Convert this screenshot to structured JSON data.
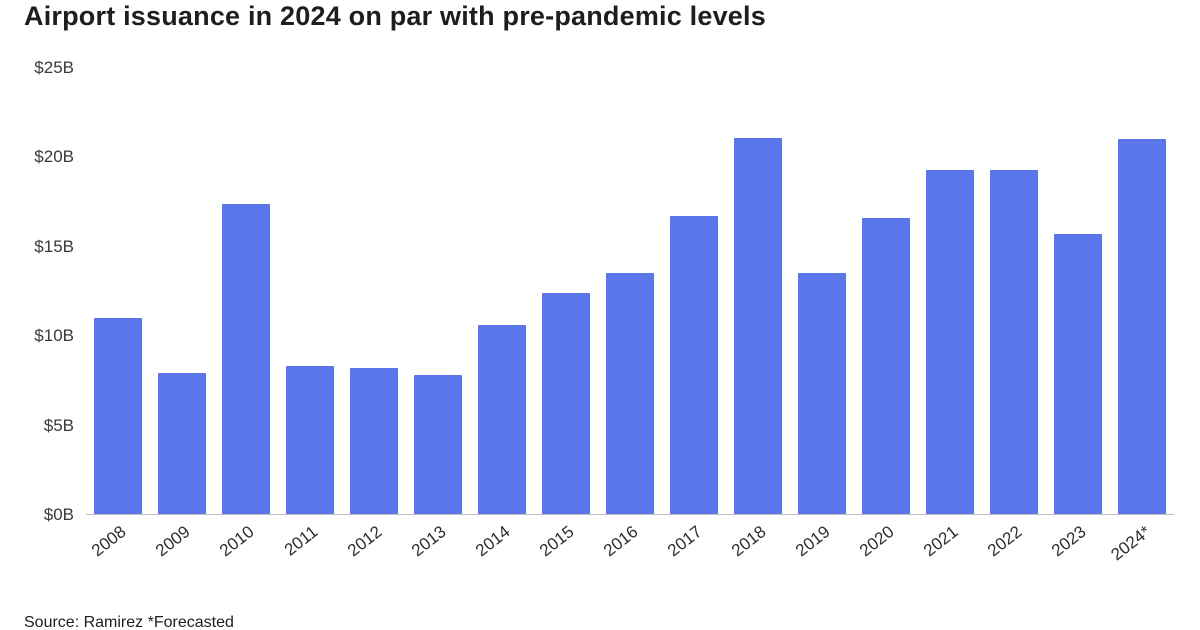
{
  "page": {
    "title": "Airport issuance in 2024 on par with pre-pandemic levels",
    "source": "Source: Ramirez *Forecasted"
  },
  "chart_data": {
    "type": "bar",
    "title": "Airport issuance in 2024 on par with pre-pandemic levels",
    "categories": [
      "2008",
      "2009",
      "2010",
      "2011",
      "2012",
      "2013",
      "2014",
      "2015",
      "2016",
      "2017",
      "2018",
      "2019",
      "2020",
      "2021",
      "2022",
      "2023",
      "2024*"
    ],
    "values": [
      11.0,
      7.9,
      17.4,
      8.3,
      8.2,
      7.8,
      10.6,
      12.4,
      13.5,
      16.7,
      21.1,
      13.5,
      16.6,
      19.3,
      19.3,
      15.7,
      21.0
    ],
    "unit": "billions of dollars",
    "xlabel": "",
    "ylabel": "",
    "ylim": [
      0,
      25
    ],
    "yticks": [
      {
        "value": 0,
        "label": "$0B"
      },
      {
        "value": 5,
        "label": "$5B"
      },
      {
        "value": 10,
        "label": "$10B"
      },
      {
        "value": 15,
        "label": "$15B"
      },
      {
        "value": 20,
        "label": "$20B"
      },
      {
        "value": 25,
        "label": "$25B"
      }
    ],
    "bar_color": "#5b76e8",
    "grid": false,
    "legend": false,
    "annotations": [
      "*Forecasted"
    ],
    "source": "Source: Ramirez *Forecasted"
  }
}
